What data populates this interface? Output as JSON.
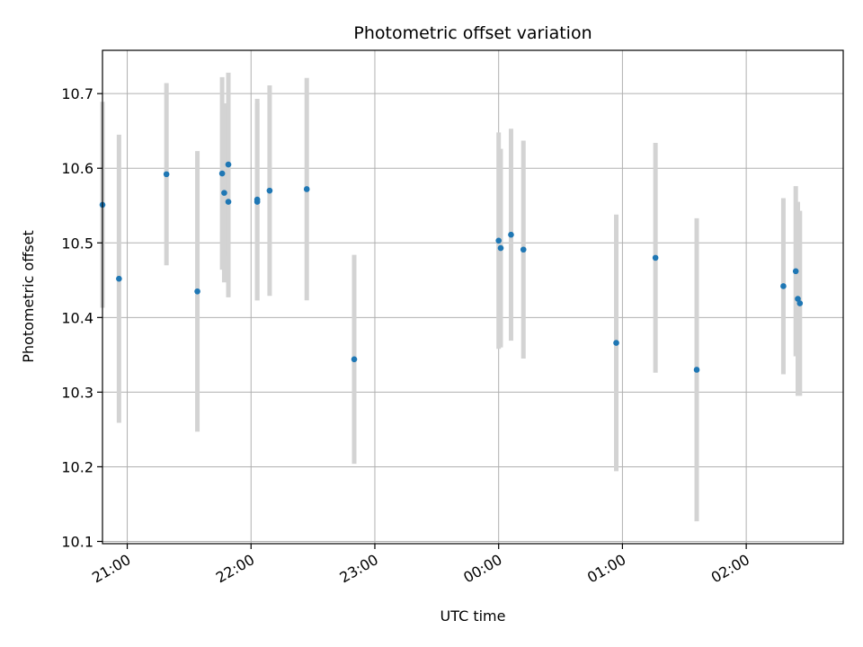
{
  "chart_data": {
    "type": "scatter",
    "title": "Photometric offset variation",
    "xlabel": "UTC time",
    "ylabel": "Photometric offset",
    "grid": true,
    "x_axis": {
      "kind": "time",
      "range": [
        "20:48",
        "02:47"
      ],
      "ticks": [
        "21:00",
        "22:00",
        "23:00",
        "00:00",
        "01:00",
        "02:00"
      ]
    },
    "y_axis": {
      "range": [
        10.097,
        10.758
      ],
      "ticks": [
        "10.1",
        "10.2",
        "10.3",
        "10.4",
        "10.5",
        "10.6",
        "10.7"
      ]
    },
    "marker_color": "#1f77b4",
    "errorbar_color": "#d3d3d3",
    "points": [
      {
        "x": "20:48",
        "y": 10.551,
        "err": 0.138
      },
      {
        "x": "20:56",
        "y": 10.452,
        "err": 0.193
      },
      {
        "x": "21:19",
        "y": 10.592,
        "err": 0.122
      },
      {
        "x": "21:34",
        "y": 10.435,
        "err": 0.188
      },
      {
        "x": "21:46",
        "y": 10.593,
        "err": 0.129
      },
      {
        "x": "21:47",
        "y": 10.567,
        "err": 0.12
      },
      {
        "x": "21:49",
        "y": 10.605,
        "err": 0.123
      },
      {
        "x": "21:49",
        "y": 10.555,
        "err": 0.128
      },
      {
        "x": "22:03",
        "y": 10.555,
        "err": 0.132
      },
      {
        "x": "22:03",
        "y": 10.558,
        "err": 0.135
      },
      {
        "x": "22:09",
        "y": 10.57,
        "err": 0.141
      },
      {
        "x": "22:27",
        "y": 10.572,
        "err": 0.149
      },
      {
        "x": "22:50",
        "y": 10.344,
        "err": 0.14
      },
      {
        "x": "00:00",
        "y": 10.503,
        "err": 0.145
      },
      {
        "x": "00:01",
        "y": 10.493,
        "err": 0.133
      },
      {
        "x": "00:06",
        "y": 10.511,
        "err": 0.142
      },
      {
        "x": "00:12",
        "y": 10.491,
        "err": 0.146
      },
      {
        "x": "00:57",
        "y": 10.366,
        "err": 0.172
      },
      {
        "x": "01:16",
        "y": 10.48,
        "err": 0.154
      },
      {
        "x": "01:36",
        "y": 10.33,
        "err": 0.203
      },
      {
        "x": "02:18",
        "y": 10.442,
        "err": 0.118
      },
      {
        "x": "02:24",
        "y": 10.462,
        "err": 0.114
      },
      {
        "x": "02:25",
        "y": 10.425,
        "err": 0.13
      },
      {
        "x": "02:26",
        "y": 10.419,
        "err": 0.124
      }
    ]
  }
}
